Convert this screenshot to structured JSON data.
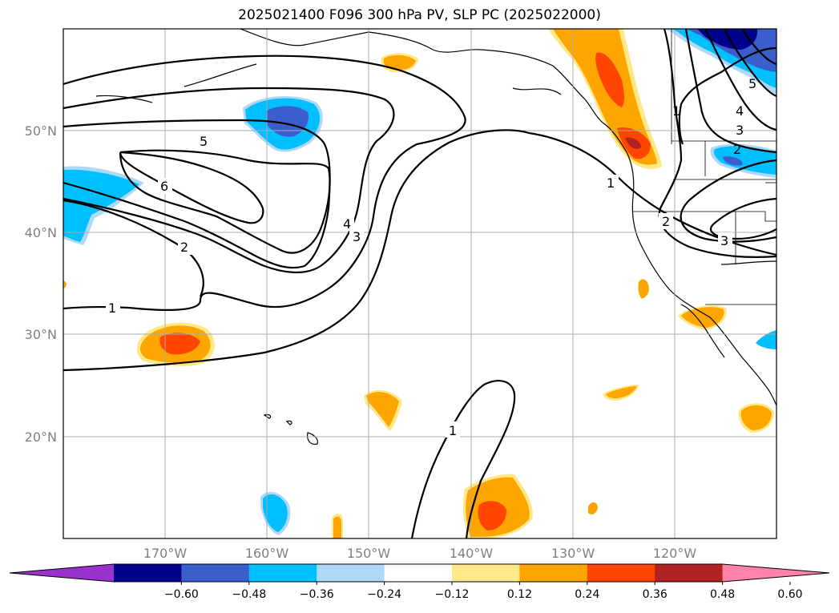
{
  "title": "2025021400 F096 300 hPa PV, SLP PC (2025022000)",
  "map": {
    "projection": "equirectangular",
    "lon_range": [
      -180,
      -110
    ],
    "lat_range": [
      10,
      60
    ],
    "gridlines": true,
    "lat_labels": [
      "50°N",
      "40°N",
      "30°N",
      "20°N"
    ],
    "lon_labels": [
      "170°W",
      "160°W",
      "150°W",
      "140°W",
      "130°W",
      "120°W"
    ],
    "contour_labels": [
      "5",
      "6",
      "2",
      "1",
      "4",
      "3",
      "1",
      "2",
      "3",
      "1",
      "2",
      "3",
      "4",
      "5",
      "1"
    ]
  },
  "colorbar": {
    "extend": "both",
    "colors": [
      "#9932cc",
      "#00008b",
      "#3a5fcd",
      "#00bfff",
      "#add8f6",
      "#ffffff",
      "#ffe888",
      "#ffa500",
      "#ff4500",
      "#b22222",
      "#ff82ab"
    ],
    "tick_labels": [
      "−0.60",
      "−0.48",
      "−0.36",
      "−0.24",
      "−0.12",
      "0.12",
      "0.24",
      "0.36",
      "0.48",
      "0.60"
    ]
  }
}
